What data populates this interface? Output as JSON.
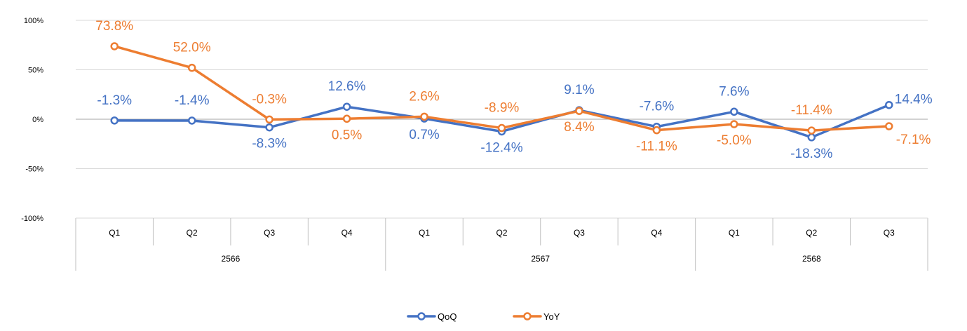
{
  "chart_data": {
    "type": "line",
    "title": "",
    "xlabel": "",
    "ylabel": "",
    "ylim": [
      -100,
      100
    ],
    "y_ticks": [
      {
        "value": 100,
        "label": "100%"
      },
      {
        "value": 50,
        "label": "50%"
      },
      {
        "value": 0,
        "label": "0%"
      },
      {
        "value": -50,
        "label": "-50%"
      },
      {
        "value": -100,
        "label": "-100%"
      }
    ],
    "categories": [
      "Q1",
      "Q2",
      "Q3",
      "Q4",
      "Q1",
      "Q2",
      "Q3",
      "Q4",
      "Q1",
      "Q2",
      "Q3"
    ],
    "groups": [
      {
        "label": "2566",
        "count": 4
      },
      {
        "label": "2567",
        "count": 4
      },
      {
        "label": "2568",
        "count": 3
      }
    ],
    "grid": true,
    "legend_position": "bottom",
    "series": [
      {
        "name": "QoQ",
        "color": "#4472C4",
        "values": [
          -1.3,
          -1.4,
          -8.3,
          12.6,
          0.7,
          -12.4,
          9.1,
          -7.6,
          7.6,
          -18.3,
          14.4
        ],
        "labels": [
          "-1.3%",
          "-1.4%",
          "-8.3%",
          "12.6%",
          "0.7%",
          "-12.4%",
          "9.1%",
          "-7.6%",
          "7.6%",
          "-18.3%",
          "14.4%"
        ],
        "label_side": [
          "above",
          "above",
          "below",
          "above",
          "below",
          "below",
          "above",
          "above",
          "above",
          "below",
          "right"
        ]
      },
      {
        "name": "YoY",
        "color": "#ED7D31",
        "values": [
          73.8,
          52.0,
          -0.3,
          0.5,
          2.6,
          -8.9,
          8.4,
          -11.1,
          -5.0,
          -11.4,
          -7.1
        ],
        "labels": [
          "73.8%",
          "52.0%",
          "-0.3%",
          "0.5%",
          "2.6%",
          "-8.9%",
          "8.4%",
          "-11.1%",
          "-5.0%",
          "-11.4%",
          "-7.1%"
        ],
        "label_side": [
          "above",
          "above",
          "above",
          "below",
          "above",
          "above",
          "below",
          "below",
          "below",
          "above",
          "below-right"
        ]
      }
    ]
  }
}
